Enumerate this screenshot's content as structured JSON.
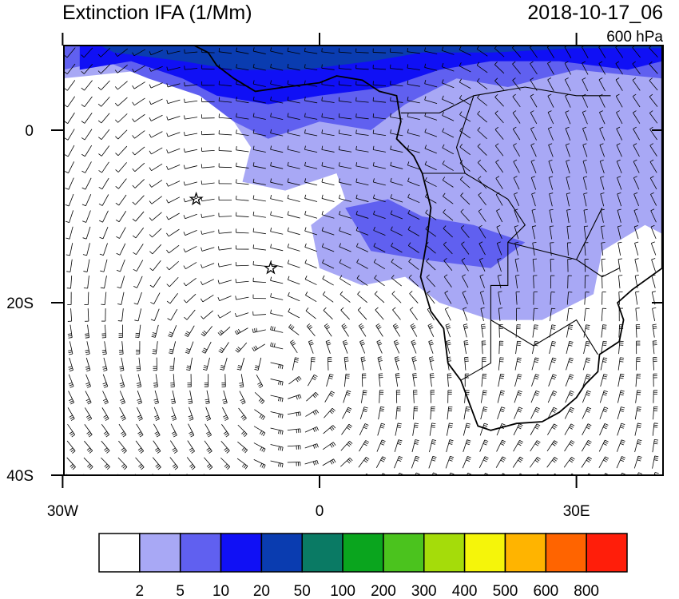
{
  "map": {
    "title": "Extinction IFA (1/Mm)",
    "date": "2018-10-17_06",
    "level": "600 hPa",
    "lat_ticks": [
      {
        "value": 0,
        "label": "0"
      },
      {
        "value": -20,
        "label": "20S"
      },
      {
        "value": -40,
        "label": "40S"
      }
    ],
    "lon_ticks": [
      {
        "value": -30,
        "label": "30W"
      },
      {
        "value": 0,
        "label": "0"
      },
      {
        "value": 30,
        "label": "30E"
      }
    ]
  },
  "colorbar": {
    "labels": [
      2,
      5,
      10,
      20,
      50,
      100,
      200,
      300,
      400,
      500,
      600,
      800
    ],
    "colors": [
      "#ffffff",
      "#a8a8f5",
      "#6060f0",
      "#1010f5",
      "#0a3cb0",
      "#0a7a64",
      "#0aa51e",
      "#4bc31e",
      "#a5dc0a",
      "#f5f50a",
      "#ffb400",
      "#ff6400",
      "#ff1e0a"
    ]
  }
}
